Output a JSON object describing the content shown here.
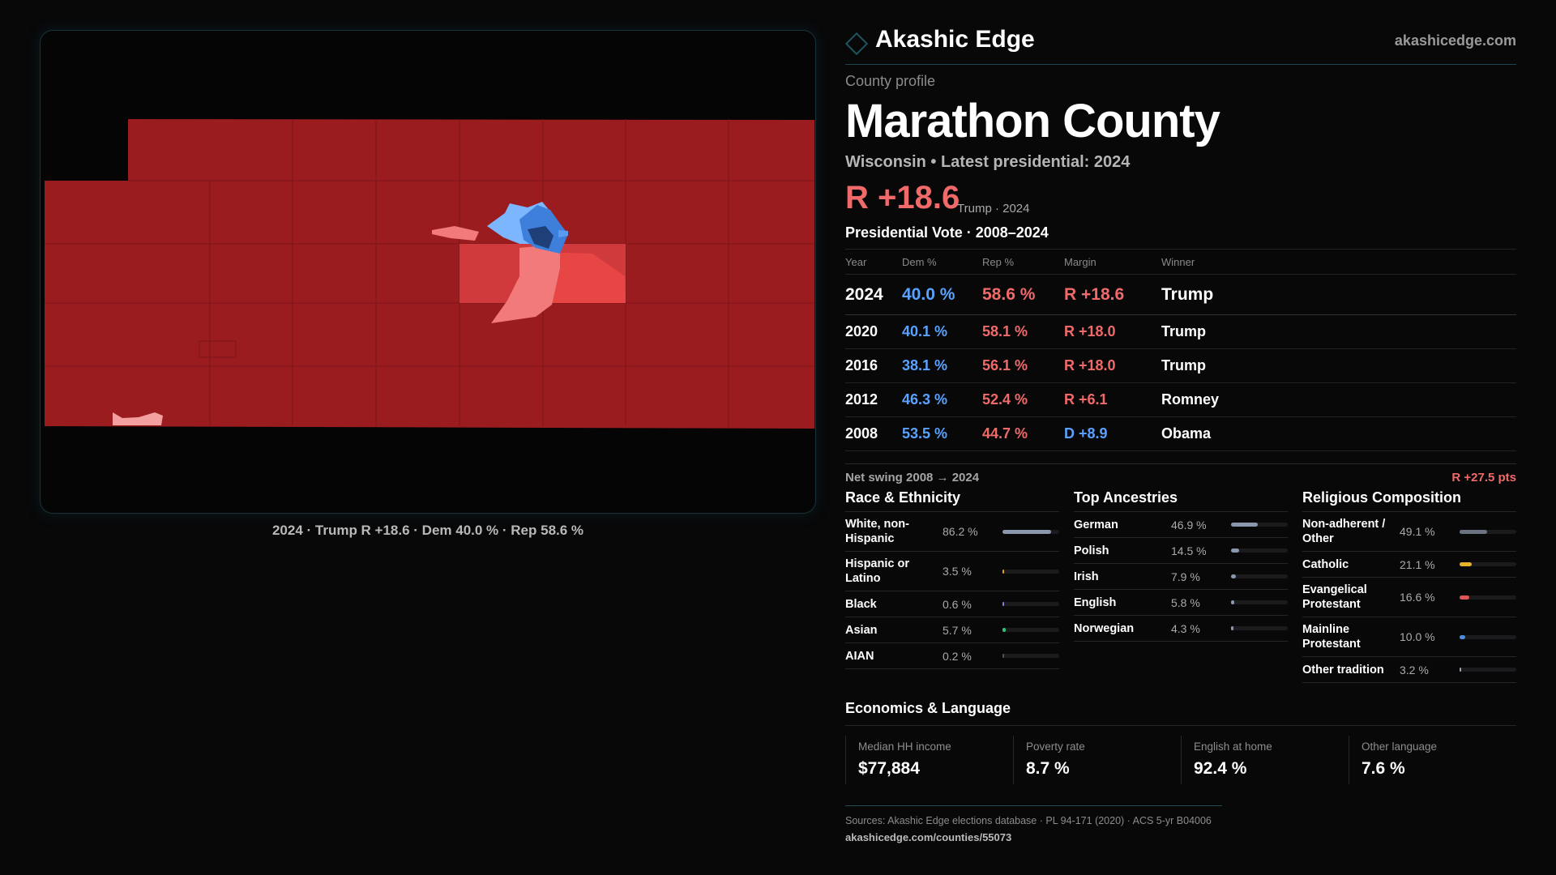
{
  "map": {
    "caption": "2024 · Trump R +18.6 · Dem 40.0 % · Rep 58.6 %",
    "colors": {
      "safe_r": "#9b1c1f",
      "lean_r": "#d13a3c",
      "likely_r": "#e84545",
      "tilt_r": "#f27a7a",
      "lean_d": "#7bb6ff",
      "likely_d": "#3f7fdc",
      "safe_d": "#1e3f78"
    }
  },
  "header": {
    "brand": "Akashic Edge",
    "site": "akashicedge.com"
  },
  "profile": {
    "kicker": "County profile",
    "title": "Marathon County",
    "subtitle": "Wisconsin • Latest presidential: 2024",
    "margin": "R +18.6",
    "margin_note": "Trump · 2024"
  },
  "votes": {
    "title": "Presidential Vote · 2008–2024",
    "headers": [
      "Year",
      "Dem %",
      "Rep %",
      "Margin",
      "Winner"
    ],
    "rows": [
      {
        "year": "2024",
        "dem": "40.0 %",
        "rep": "58.6 %",
        "margin": "R +18.6",
        "winner": "Trump",
        "party": "rep"
      },
      {
        "year": "2020",
        "dem": "40.1 %",
        "rep": "58.1 %",
        "margin": "R +18.0",
        "winner": "Trump",
        "party": "rep"
      },
      {
        "year": "2016",
        "dem": "38.1 %",
        "rep": "56.1 %",
        "margin": "R +18.0",
        "winner": "Trump",
        "party": "rep"
      },
      {
        "year": "2012",
        "dem": "46.3 %",
        "rep": "52.4 %",
        "margin": "R +6.1",
        "winner": "Romney",
        "party": "rep"
      },
      {
        "year": "2008",
        "dem": "53.5 %",
        "rep": "44.7 %",
        "margin": "D +8.9",
        "winner": "Obama",
        "party": "dem"
      }
    ]
  },
  "swing": {
    "label": "Net swing 2008 → 2024",
    "value": "R +27.5 pts"
  },
  "race": {
    "title": "Race & Ethnicity",
    "items": [
      {
        "label": "White, non-Hispanic",
        "pct": "86.2 %",
        "value": 86.2,
        "color": "#8a97ad"
      },
      {
        "label": "Hispanic or Latino",
        "pct": "3.5 %",
        "value": 3.5,
        "color": "#e39a2d"
      },
      {
        "label": "Black",
        "pct": "0.6 %",
        "value": 0.6,
        "color": "#8d7ce0"
      },
      {
        "label": "Asian",
        "pct": "5.7 %",
        "value": 5.7,
        "color": "#2ec27e"
      },
      {
        "label": "AIAN",
        "pct": "0.2 %",
        "value": 0.2,
        "color": "#555"
      }
    ]
  },
  "ancestry": {
    "title": "Top Ancestries",
    "items": [
      {
        "label": "German",
        "pct": "46.9 %",
        "value": 46.9,
        "color": "#8a97ad"
      },
      {
        "label": "Polish",
        "pct": "14.5 %",
        "value": 14.5,
        "color": "#8a97ad"
      },
      {
        "label": "Irish",
        "pct": "7.9 %",
        "value": 7.9,
        "color": "#8a97ad"
      },
      {
        "label": "English",
        "pct": "5.8 %",
        "value": 5.8,
        "color": "#8a97ad"
      },
      {
        "label": "Norwegian",
        "pct": "4.3 %",
        "value": 4.3,
        "color": "#8a97ad"
      }
    ]
  },
  "religion": {
    "title": "Religious Composition",
    "items": [
      {
        "label": "Non-adherent / Other",
        "pct": "49.1 %",
        "value": 49.1,
        "color": "#6b7280"
      },
      {
        "label": "Catholic",
        "pct": "21.1 %",
        "value": 21.1,
        "color": "#e5b22a"
      },
      {
        "label": "Evangelical Protestant",
        "pct": "16.6 %",
        "value": 16.6,
        "color": "#e05555"
      },
      {
        "label": "Mainline Protestant",
        "pct": "10.0 %",
        "value": 10.0,
        "color": "#4a8fe0"
      },
      {
        "label": "Other tradition",
        "pct": "3.2 %",
        "value": 3.2,
        "color": "#9ca3af"
      }
    ]
  },
  "economics": {
    "title": "Economics & Language",
    "items": [
      {
        "label": "Median HH income",
        "value": "$77,884"
      },
      {
        "label": "Poverty rate",
        "value": "8.7 %"
      },
      {
        "label": "English at home",
        "value": "92.4 %"
      },
      {
        "label": "Other language",
        "value": "7.6 %"
      }
    ]
  },
  "footer": {
    "sources": "Sources: Akashic Edge elections database · PL 94-171 (2020) · ACS 5-yr B04006",
    "url": "akashicedge.com/counties/55073"
  }
}
